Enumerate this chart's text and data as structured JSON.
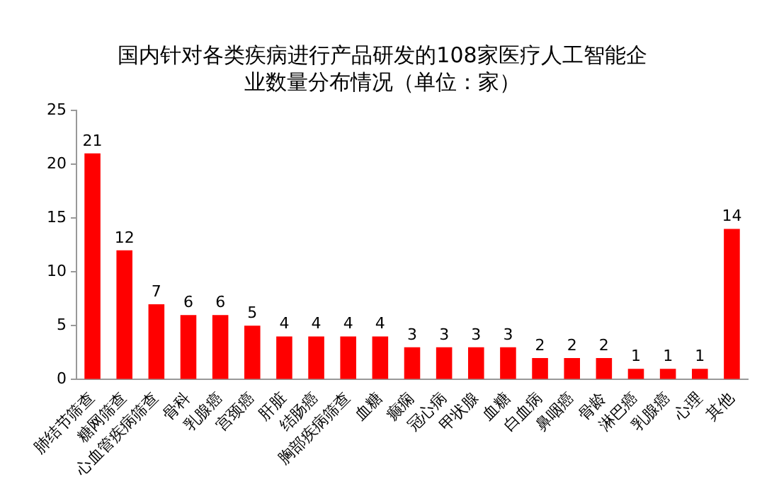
{
  "chart_data": {
    "type": "bar",
    "title": "国内针对各类疾病进行产品研发的108家医疗人工智能企业数量分布情况（单位：家）",
    "categories": [
      "肺结节筛查",
      "糖网筛查",
      "心血管疾病筛查",
      "骨科",
      "乳腺癌",
      "宫颈癌",
      "肝脏",
      "结肠癌",
      "胸部疾病筛查",
      "血糖",
      "癫痫",
      "冠心病",
      "甲状腺",
      "血糖",
      "白血病",
      "鼻咽癌",
      "骨龄",
      "淋巴癌",
      "乳腺癌",
      "心理",
      "其他"
    ],
    "values": [
      21,
      12,
      7,
      6,
      6,
      5,
      4,
      4,
      4,
      4,
      3,
      3,
      3,
      3,
      2,
      2,
      2,
      1,
      1,
      1,
      14
    ],
    "color": "#ff0000",
    "ylim": [
      0,
      25
    ],
    "yticks": [
      0,
      5,
      10,
      15,
      20,
      25
    ],
    "grid": false,
    "legend": false,
    "data_labels": true
  }
}
